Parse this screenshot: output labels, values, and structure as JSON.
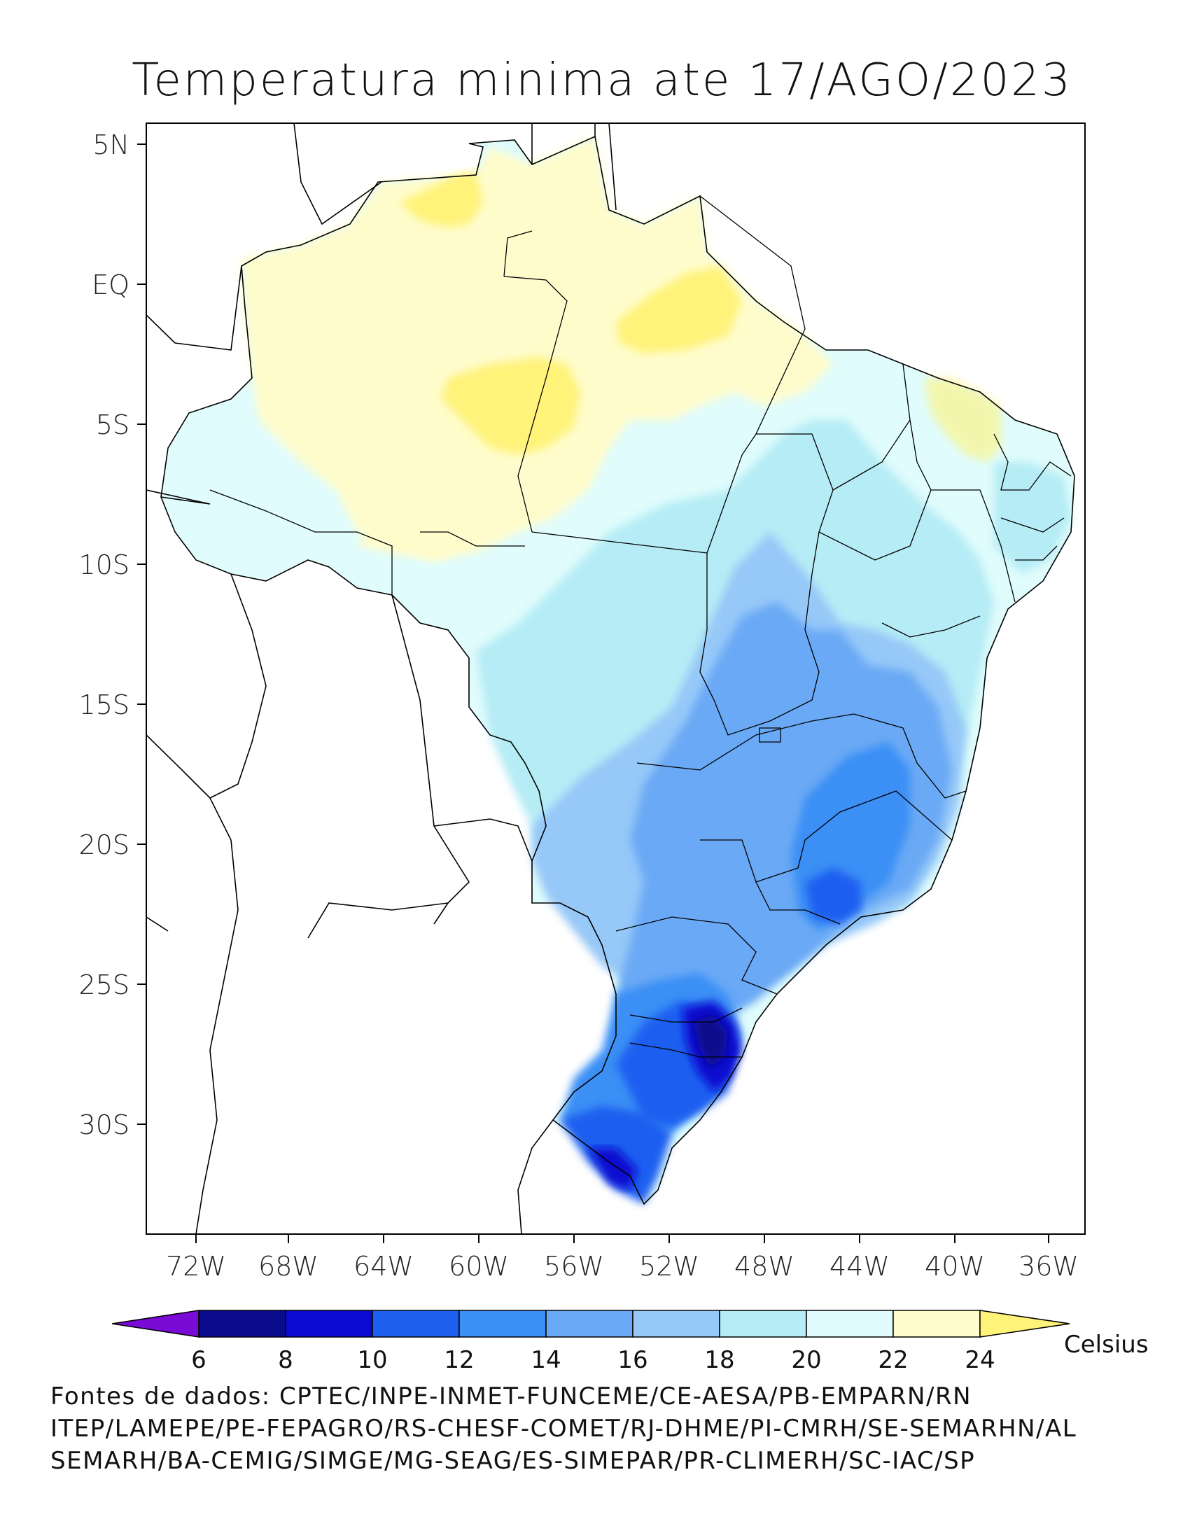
{
  "title": "Temperatura minima ate 17/AGO/2023",
  "map": {
    "lat_ticks": [
      "5N",
      "EQ",
      "5S",
      "10S",
      "15S",
      "20S",
      "25S",
      "30S"
    ],
    "lon_ticks": [
      "72W",
      "68W",
      "64W",
      "60W",
      "56W",
      "52W",
      "48W",
      "44W",
      "40W",
      "36W"
    ]
  },
  "colorbar": {
    "unit": "Celsius",
    "levels": [
      "6",
      "8",
      "10",
      "12",
      "14",
      "16",
      "18",
      "20",
      "22",
      "24"
    ],
    "colors": [
      "#7a0ad6",
      "#0a0a8c",
      "#0a0ad0",
      "#1e5ff0",
      "#3b8ff5",
      "#6aa9f5",
      "#96c8f8",
      "#b5ecf5",
      "#e0fcfc",
      "#fffccc",
      "#fff37a"
    ]
  },
  "sources": [
    "Fontes de dados: CPTEC/INPE-INMET-FUNCEME/CE-AESA/PB-EMPARN/RN",
    "ITEP/LAMEPE/PE-FEPAGRO/RS-CHESF-COMET/RJ-DHME/PI-CMRH/SE-SEMARHN/AL",
    "SEMARH/BA-CEMIG/SIMGE/MG-SEAG/ES-SIMEPAR/PR-CLIMERH/SC-IAC/SP"
  ]
}
